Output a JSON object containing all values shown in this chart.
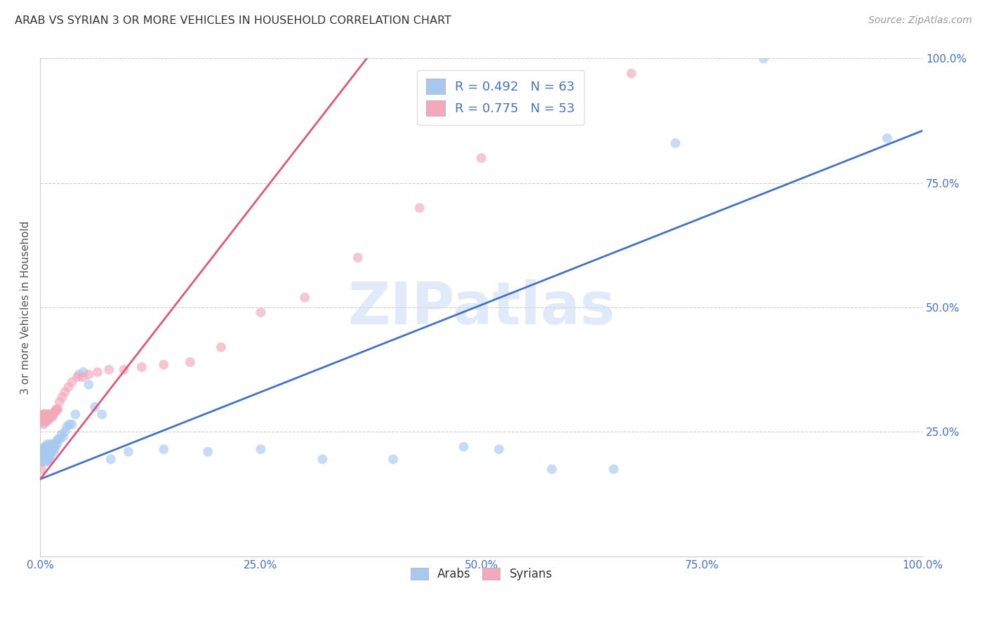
{
  "title": "ARAB VS SYRIAN 3 OR MORE VEHICLES IN HOUSEHOLD CORRELATION CHART",
  "source": "Source: ZipAtlas.com",
  "ylabel": "3 or more Vehicles in Household",
  "watermark": "ZIPatlas",
  "arab_R": 0.492,
  "arab_N": 63,
  "syrian_R": 0.775,
  "syrian_N": 53,
  "arab_color": "#a8c8f0",
  "syrian_color": "#f4a8bc",
  "arab_line_color": "#4472c4",
  "syrian_line_color": "#e05878",
  "xlim": [
    0,
    1
  ],
  "ylim": [
    0,
    1
  ],
  "xticks": [
    0.0,
    0.25,
    0.5,
    0.75,
    1.0
  ],
  "yticks": [
    0.0,
    0.25,
    0.5,
    0.75,
    1.0
  ],
  "xticklabels": [
    "0.0%",
    "25.0%",
    "50.0%",
    "75.0%",
    "100.0%"
  ],
  "right_yticklabels": [
    "",
    "25.0%",
    "50.0%",
    "75.0%",
    "100.0%"
  ],
  "arab_x": [
    0.001,
    0.002,
    0.002,
    0.003,
    0.003,
    0.003,
    0.004,
    0.004,
    0.004,
    0.005,
    0.005,
    0.005,
    0.006,
    0.006,
    0.006,
    0.007,
    0.007,
    0.008,
    0.008,
    0.008,
    0.009,
    0.009,
    0.01,
    0.01,
    0.011,
    0.011,
    0.012,
    0.012,
    0.013,
    0.014,
    0.015,
    0.016,
    0.017,
    0.018,
    0.019,
    0.02,
    0.022,
    0.024,
    0.026,
    0.028,
    0.03,
    0.033,
    0.036,
    0.04,
    0.044,
    0.049,
    0.055,
    0.062,
    0.07,
    0.08,
    0.1,
    0.14,
    0.19,
    0.25,
    0.32,
    0.4,
    0.48,
    0.52,
    0.58,
    0.65,
    0.72,
    0.82,
    0.96
  ],
  "arab_y": [
    0.19,
    0.205,
    0.215,
    0.2,
    0.21,
    0.215,
    0.195,
    0.205,
    0.215,
    0.19,
    0.2,
    0.22,
    0.195,
    0.205,
    0.22,
    0.2,
    0.215,
    0.195,
    0.205,
    0.225,
    0.19,
    0.21,
    0.195,
    0.215,
    0.2,
    0.225,
    0.205,
    0.22,
    0.215,
    0.225,
    0.21,
    0.215,
    0.22,
    0.23,
    0.225,
    0.235,
    0.235,
    0.245,
    0.24,
    0.25,
    0.26,
    0.265,
    0.265,
    0.285,
    0.365,
    0.37,
    0.345,
    0.3,
    0.285,
    0.195,
    0.21,
    0.215,
    0.21,
    0.215,
    0.195,
    0.195,
    0.22,
    0.215,
    0.175,
    0.175,
    0.83,
    1.0,
    0.84
  ],
  "syrian_x": [
    0.001,
    0.002,
    0.002,
    0.003,
    0.003,
    0.004,
    0.004,
    0.004,
    0.005,
    0.005,
    0.005,
    0.006,
    0.006,
    0.007,
    0.007,
    0.008,
    0.008,
    0.009,
    0.009,
    0.01,
    0.01,
    0.011,
    0.012,
    0.013,
    0.014,
    0.015,
    0.016,
    0.017,
    0.018,
    0.019,
    0.02,
    0.022,
    0.025,
    0.028,
    0.032,
    0.036,
    0.042,
    0.048,
    0.055,
    0.065,
    0.078,
    0.095,
    0.115,
    0.14,
    0.17,
    0.205,
    0.25,
    0.3,
    0.36,
    0.43,
    0.5,
    0.58,
    0.67
  ],
  "syrian_y": [
    0.175,
    0.27,
    0.28,
    0.275,
    0.285,
    0.265,
    0.275,
    0.285,
    0.27,
    0.28,
    0.285,
    0.275,
    0.285,
    0.27,
    0.285,
    0.275,
    0.285,
    0.275,
    0.285,
    0.275,
    0.285,
    0.28,
    0.285,
    0.285,
    0.28,
    0.285,
    0.29,
    0.29,
    0.295,
    0.295,
    0.295,
    0.31,
    0.32,
    0.33,
    0.34,
    0.35,
    0.36,
    0.36,
    0.365,
    0.37,
    0.375,
    0.375,
    0.38,
    0.385,
    0.39,
    0.42,
    0.49,
    0.52,
    0.6,
    0.7,
    0.8,
    0.885,
    0.97
  ],
  "arab_line_x": [
    0.0,
    1.0
  ],
  "arab_line_y": [
    0.155,
    0.855
  ],
  "syrian_line_x": [
    0.0,
    0.37
  ],
  "syrian_line_y": [
    0.155,
    1.0
  ],
  "title_fontsize": 11.5,
  "source_fontsize": 10,
  "tick_fontsize": 11,
  "ylabel_fontsize": 11,
  "watermark_fontsize": 60,
  "legend_fontsize": 13,
  "marker_size": 100,
  "marker_alpha": 0.65
}
